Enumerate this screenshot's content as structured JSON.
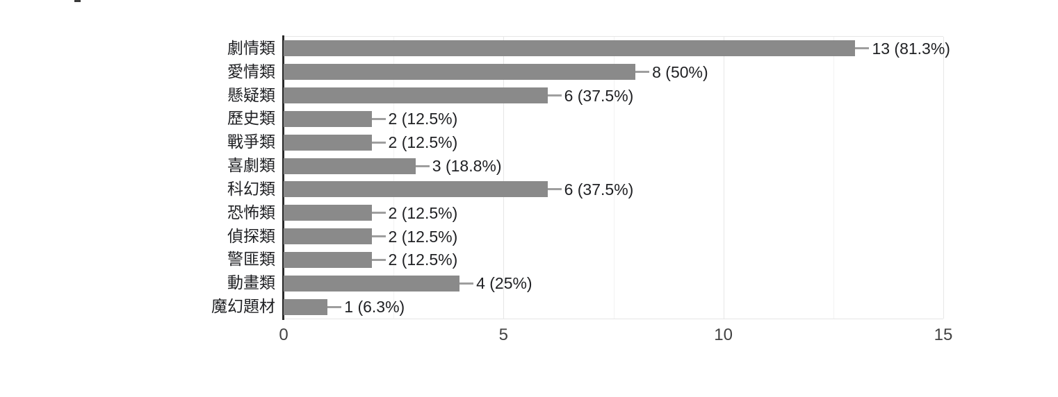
{
  "chart_data": {
    "type": "bar",
    "orientation": "horizontal",
    "title": "",
    "categories": [
      "劇情類",
      "愛情類",
      "懸疑類",
      "歷史類",
      "戰爭類",
      "喜劇類",
      "科幻類",
      "恐怖類",
      "偵探類",
      "警匪類",
      "動畫類",
      "魔幻題材"
    ],
    "values": [
      13,
      8,
      6,
      2,
      2,
      3,
      6,
      2,
      2,
      2,
      4,
      1
    ],
    "value_labels": [
      "13 (81.3%)",
      "8 (50%)",
      "6 (37.5%)",
      "2 (12.5%)",
      "2 (12.5%)",
      "3 (18.8%)",
      "6 (37.5%)",
      "2 (12.5%)",
      "2 (12.5%)",
      "2 (12.5%)",
      "4 (25%)",
      "1 (6.3%)"
    ],
    "xlabel": "",
    "ylabel": "",
    "xlim": [
      0,
      15
    ],
    "x_ticks": [
      0,
      5,
      10,
      15
    ],
    "x_minor_gridlines": [
      2.5,
      7.5,
      12.5
    ],
    "grid": true,
    "legend": "none",
    "colors": {
      "bar": "#8a8a8a",
      "connector": "#9e9e9e",
      "axis_line": "#2b2b2b",
      "major_gridline": "#e6e6e6",
      "minor_gridline": "#f2f2f2",
      "category_label": "#202124",
      "value_label": "#202124",
      "tick_label": "#424242",
      "background": "#ffffff"
    }
  }
}
